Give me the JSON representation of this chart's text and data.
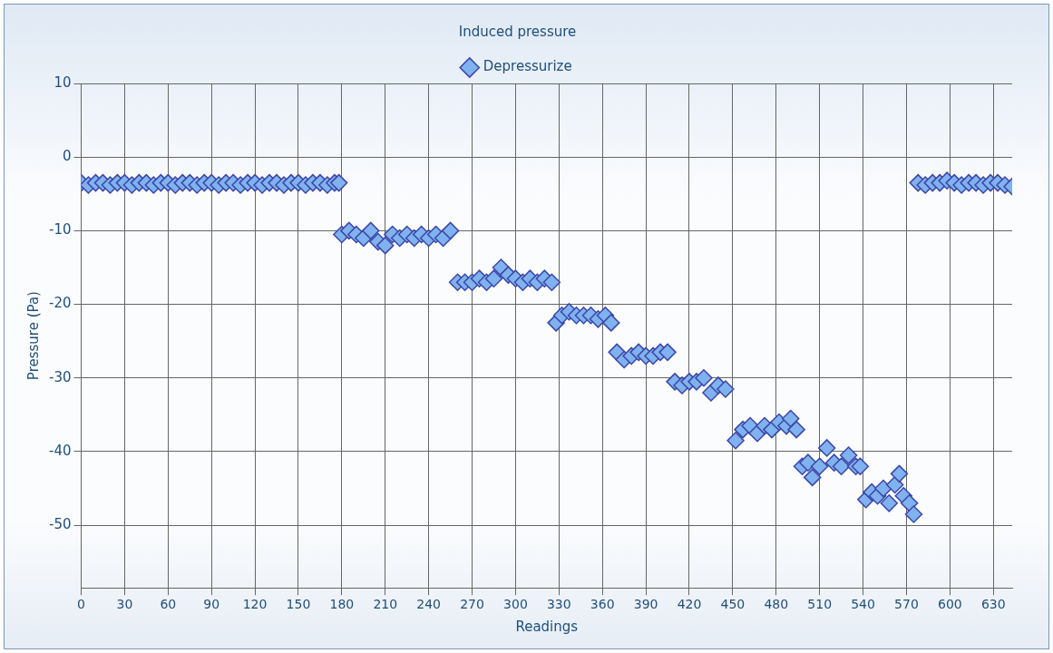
{
  "chart_data": {
    "type": "scatter",
    "title": "Induced pressure",
    "xlabel": "Readings",
    "ylabel": "Pressure (Pa)",
    "xlim": [
      0,
      643
    ],
    "xticks": [
      0,
      30,
      60,
      90,
      120,
      150,
      180,
      210,
      240,
      270,
      300,
      330,
      360,
      390,
      420,
      450,
      480,
      510,
      540,
      570,
      600,
      630
    ],
    "ylim": [
      -58.5,
      10
    ],
    "yticks": [
      10,
      0,
      -10,
      -20,
      -30,
      -40,
      -50
    ],
    "grid": true,
    "legend": "top",
    "marker": "diamond",
    "series": [
      {
        "name": "Depressurize",
        "color": "#3c46a8",
        "x": [
          0,
          5,
          10,
          15,
          20,
          25,
          30,
          35,
          40,
          45,
          50,
          55,
          60,
          65,
          70,
          75,
          80,
          85,
          90,
          95,
          100,
          105,
          110,
          115,
          120,
          125,
          130,
          135,
          140,
          145,
          150,
          155,
          160,
          165,
          170,
          175,
          178,
          180,
          185,
          190,
          195,
          200,
          205,
          210,
          215,
          220,
          225,
          230,
          235,
          240,
          245,
          250,
          255,
          260,
          265,
          270,
          275,
          280,
          285,
          290,
          295,
          300,
          305,
          310,
          315,
          320,
          325,
          328,
          332,
          337,
          342,
          347,
          352,
          357,
          362,
          366,
          370,
          375,
          380,
          385,
          390,
          395,
          400,
          405,
          410,
          415,
          420,
          425,
          430,
          435,
          440,
          445,
          452,
          457,
          462,
          467,
          472,
          477,
          482,
          487,
          490,
          494,
          498,
          502,
          505,
          510,
          515,
          520,
          525,
          530,
          535,
          538,
          542,
          546,
          550,
          554,
          558,
          562,
          565,
          568,
          572,
          575,
          578,
          583,
          588,
          593,
          598,
          603,
          608,
          613,
          618,
          623,
          628,
          633,
          638,
          643
        ],
        "values": [
          -3.5,
          -3.8,
          -3.5,
          -3.5,
          -3.8,
          -3.5,
          -3.5,
          -3.8,
          -3.5,
          -3.5,
          -3.8,
          -3.5,
          -3.5,
          -3.8,
          -3.5,
          -3.5,
          -3.8,
          -3.5,
          -3.5,
          -3.8,
          -3.5,
          -3.5,
          -3.8,
          -3.5,
          -3.5,
          -3.8,
          -3.5,
          -3.5,
          -3.8,
          -3.5,
          -3.5,
          -3.8,
          -3.5,
          -3.5,
          -3.8,
          -3.5,
          -3.5,
          -10.5,
          -10,
          -10.5,
          -11,
          -10,
          -11.5,
          -12,
          -10.5,
          -11,
          -10.5,
          -11,
          -10.5,
          -11,
          -10.5,
          -11,
          -10,
          -17,
          -17,
          -17,
          -16.5,
          -17,
          -16.5,
          -15,
          -16,
          -16.5,
          -17,
          -16.5,
          -17,
          -16.5,
          -17,
          -22.5,
          -21.5,
          -21,
          -21.5,
          -21.5,
          -21.5,
          -22,
          -21.5,
          -22.5,
          -26.5,
          -27.5,
          -27,
          -26.5,
          -27,
          -27,
          -26.5,
          -26.5,
          -30.5,
          -31,
          -30.5,
          -30.5,
          -30,
          -32,
          -31,
          -31.5,
          -38.5,
          -37,
          -36.5,
          -37.5,
          -36.5,
          -37,
          -36,
          -36.5,
          -35.5,
          -37,
          -42,
          -41.5,
          -43.5,
          -42,
          -39.5,
          -41.5,
          -42,
          -40.5,
          -42,
          -42,
          -46.5,
          -45.5,
          -46,
          -45,
          -47,
          -44.5,
          -43,
          -46,
          -47,
          -48.5,
          -3.5,
          -3.8,
          -3.5,
          -3.5,
          -3.2,
          -3.5,
          -3.8,
          -3.5,
          -3.5,
          -3.8,
          -3.5,
          -3.5,
          -3.8,
          -4
        ]
      }
    ]
  }
}
